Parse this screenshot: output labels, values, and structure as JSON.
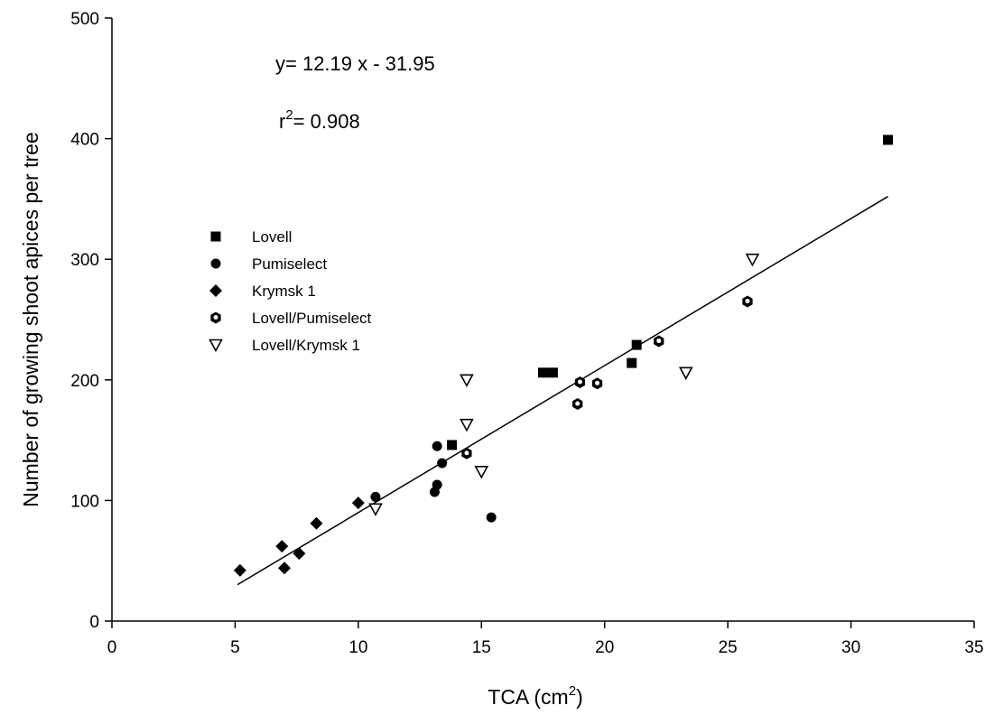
{
  "chart_data": {
    "type": "scatter",
    "xlabel": "TCA (cm",
    "xlabel_sup": "2",
    "xlabel_close": ")",
    "ylabel": "Number of growing shoot apices per tree",
    "xlim": [
      0,
      35
    ],
    "ylim": [
      0,
      500
    ],
    "xticks": [
      "0",
      "5",
      "10",
      "15",
      "20",
      "25",
      "30",
      "35"
    ],
    "yticks": [
      "0",
      "100",
      "200",
      "300",
      "400",
      "500"
    ],
    "grid": false,
    "legend_position": "middle-left",
    "annotations": {
      "equation": "y= 12.19 x - 31.95",
      "r2_prefix": "r",
      "r2_sup": "2",
      "r2_value": "= 0.908"
    },
    "regression": {
      "slope": 12.19,
      "intercept": -31.95,
      "x_range": [
        5.1,
        31.5
      ]
    },
    "series": [
      {
        "name": "Lovell",
        "marker": "square",
        "points": [
          [
            13.8,
            146
          ],
          [
            17.5,
            206
          ],
          [
            17.9,
            206
          ],
          [
            21.1,
            214
          ],
          [
            21.3,
            229
          ],
          [
            31.5,
            399
          ]
        ]
      },
      {
        "name": "Pumiselect",
        "marker": "circle",
        "points": [
          [
            10.7,
            103
          ],
          [
            13.1,
            107
          ],
          [
            13.2,
            113
          ],
          [
            13.2,
            145
          ],
          [
            13.4,
            131
          ],
          [
            15.4,
            86
          ]
        ]
      },
      {
        "name": "Krymsk 1",
        "marker": "diamond",
        "points": [
          [
            5.2,
            42
          ],
          [
            6.9,
            62
          ],
          [
            7.0,
            44
          ],
          [
            7.6,
            56
          ],
          [
            8.3,
            81
          ],
          [
            10.0,
            98
          ]
        ]
      },
      {
        "name": "Lovell/Pumiselect",
        "marker": "hexagon-dot",
        "points": [
          [
            14.4,
            139
          ],
          [
            18.9,
            180
          ],
          [
            19.0,
            198
          ],
          [
            19.7,
            197
          ],
          [
            22.2,
            232
          ],
          [
            25.8,
            265
          ]
        ]
      },
      {
        "name": "Lovell/Krymsk 1",
        "marker": "triangle-down-open",
        "points": [
          [
            10.7,
            93
          ],
          [
            14.4,
            200
          ],
          [
            14.4,
            163
          ],
          [
            15.0,
            124
          ],
          [
            23.3,
            206
          ],
          [
            26.0,
            300
          ]
        ]
      }
    ]
  }
}
